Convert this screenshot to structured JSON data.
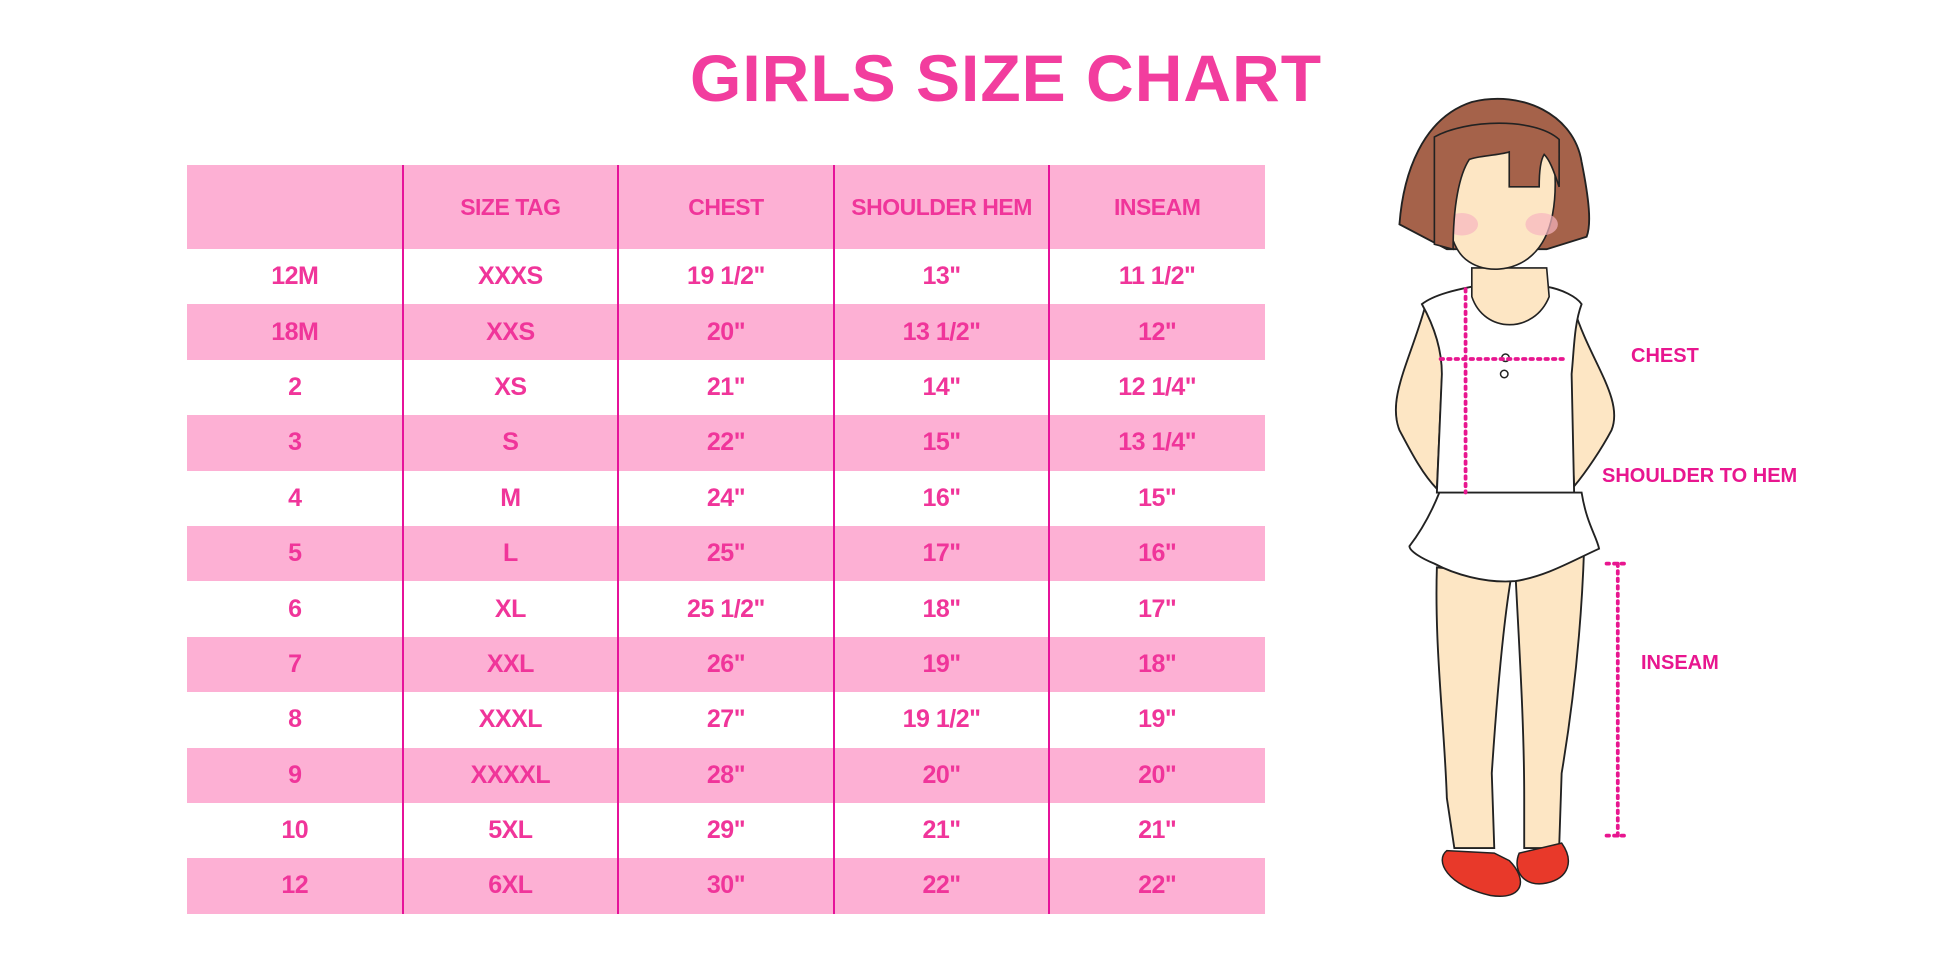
{
  "title": "GIRLS SIZE CHART",
  "table": {
    "headers": [
      "",
      "SIZE TAG",
      "CHEST",
      "SHOULDER HEM",
      "INSEAM"
    ],
    "rows": [
      [
        "12M",
        "XXXS",
        "19 1/2\"",
        "13\"",
        "11 1/2\""
      ],
      [
        "18M",
        "XXS",
        "20\"",
        "13 1/2\"",
        "12\""
      ],
      [
        "2",
        "XS",
        "21\"",
        "14\"",
        "12 1/4\""
      ],
      [
        "3",
        "S",
        "22\"",
        "15\"",
        "13 1/4\""
      ],
      [
        "4",
        "M",
        "24\"",
        "16\"",
        "15\""
      ],
      [
        "5",
        "L",
        "25\"",
        "17\"",
        "16\""
      ],
      [
        "6",
        "XL",
        "25 1/2\"",
        "18\"",
        "17\""
      ],
      [
        "7",
        "XXL",
        "26\"",
        "19\"",
        "18\""
      ],
      [
        "8",
        "XXXL",
        "27\"",
        "19 1/2\"",
        "19\""
      ],
      [
        "9",
        "XXXXL",
        "28\"",
        "20\"",
        "20\""
      ],
      [
        "10",
        "5XL",
        "29\"",
        "21\"",
        "21\""
      ],
      [
        "12",
        "6XL",
        "30\"",
        "22\"",
        "22\""
      ]
    ]
  },
  "figure": {
    "labels": {
      "chest": "CHEST",
      "shoulder_to_hem": "SHOULDER TO HEM",
      "inseam": "INSEAM"
    }
  },
  "colors": {
    "accent": "#f0359a",
    "row_pink": "#fdb0d4",
    "divider": "#e6139a",
    "hair": "#a5624a",
    "skin": "#fde6c4",
    "shoes": "#e8392a"
  }
}
